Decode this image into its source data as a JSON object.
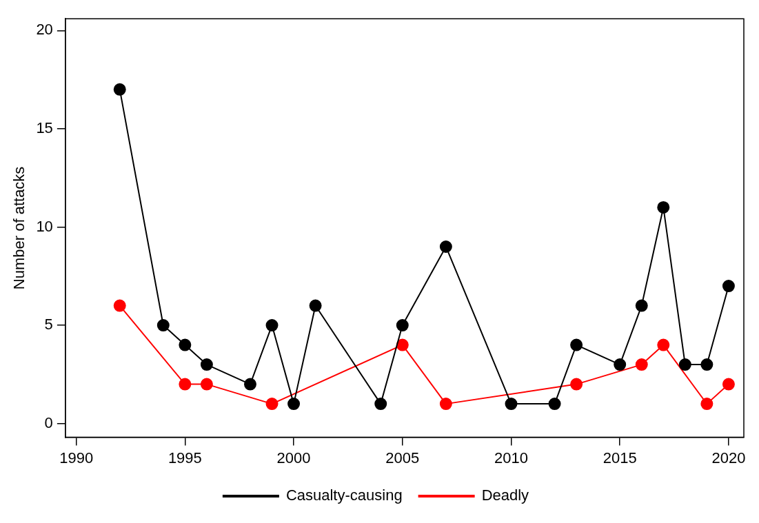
{
  "chart_data": {
    "type": "line",
    "ylabel": "Number of attacks",
    "xlim": [
      1989.5,
      2020.7
    ],
    "xticks": [
      1990,
      1995,
      2000,
      2005,
      2010,
      2015,
      2020
    ],
    "ylim": [
      -0.7,
      20.6
    ],
    "yticks": [
      0,
      5,
      10,
      15,
      20
    ],
    "grid": false,
    "legend": "bottom",
    "marker": "circle",
    "line_style": "solid",
    "series": [
      {
        "name": "Casualty-causing",
        "color": "#000000",
        "x": [
          1992,
          1994,
          1995,
          1996,
          1998,
          1999,
          2000,
          2001,
          2004,
          2005,
          2007,
          2010,
          2012,
          2013,
          2015,
          2016,
          2017,
          2018,
          2019,
          2020
        ],
        "values": [
          17,
          5,
          4,
          3,
          2,
          5,
          1,
          6,
          1,
          5,
          9,
          1,
          1,
          4,
          3,
          6,
          11,
          3,
          3,
          7
        ]
      },
      {
        "name": "Deadly",
        "color": "#ff0000",
        "x": [
          1992,
          1995,
          1996,
          1999,
          2005,
          2007,
          2013,
          2016,
          2017,
          2019,
          2020
        ],
        "values": [
          6,
          2,
          2,
          1,
          4,
          1,
          2,
          3,
          4,
          1,
          2
        ]
      }
    ]
  }
}
